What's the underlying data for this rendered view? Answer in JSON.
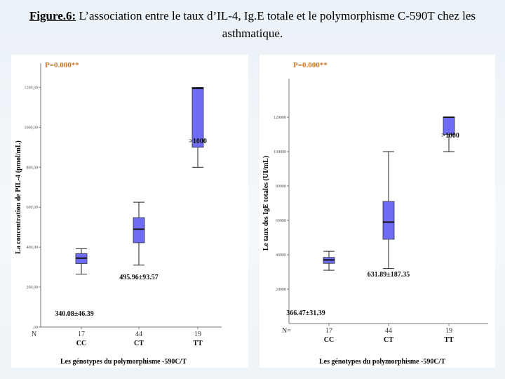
{
  "slide": {
    "figure_label": "Figure.6:",
    "figure_caption": " L’association entre le taux d’IL-4, Ig.E totale et le polymorphisme C-590T chez les asthmatique."
  },
  "chart_data": [
    {
      "type": "box",
      "annotation_p": "P=0.000**",
      "ylabel": "La concentration de PIL-4 (pmol/mL)",
      "xlabel": "Les génotypes du polymorphisme -590C/T",
      "ylim": [
        0,
        1300
      ],
      "yticks": [
        0,
        200,
        400,
        600,
        800,
        1000,
        1200
      ],
      "ytick_labels": [
        ",00",
        "200,00",
        "400,00",
        "600,00",
        "800,00",
        "1000,00",
        "1200,00"
      ],
      "n_label": "N",
      "categories": [
        "CC",
        "CT",
        "TT"
      ],
      "n": [
        "17",
        "44",
        "19"
      ],
      "boxes": [
        {
          "min": 265,
          "q1": 318,
          "median": 345,
          "q3": 368,
          "max": 392
        },
        {
          "min": 310,
          "q1": 422,
          "median": 490,
          "q3": 548,
          "max": 625
        },
        {
          "min": 800,
          "q1": 900,
          "median": 1195,
          "q3": 1200,
          "max": 1200
        }
      ],
      "value_labels": [
        "340.08±46.39",
        "495.96±93.57",
        ">1000"
      ],
      "box_color": "#6e6cf5"
    },
    {
      "type": "box",
      "annotation_p": "P=0.000**",
      "ylabel": "Le taux des IgE totales (UI/mL)",
      "xlabel": "Les génotypes du polymorphisme -590C/T",
      "ylim": [
        0,
        140000
      ],
      "yticks": [
        20000,
        40000,
        60000,
        80000,
        100000,
        120000
      ],
      "ytick_labels": [
        "20000",
        "40000",
        "60000",
        "80000",
        "100000",
        "120000"
      ],
      "n_label": "N=",
      "categories": [
        "CC",
        "CT",
        "TT"
      ],
      "n": [
        "17",
        "44",
        "19"
      ],
      "boxes": [
        {
          "min": 31000,
          "q1": 35000,
          "median": 37000,
          "q3": 38500,
          "max": 42000
        },
        {
          "min": 32000,
          "q1": 49000,
          "median": 59000,
          "q3": 71000,
          "max": 100000
        },
        {
          "min": 100000,
          "q1": 110000,
          "median": 120000,
          "q3": 120000,
          "max": 120000
        }
      ],
      "value_labels": [
        "366.47±31.39",
        "631.89±187.35",
        ">1000"
      ],
      "box_color": "#6e6cf5"
    }
  ]
}
